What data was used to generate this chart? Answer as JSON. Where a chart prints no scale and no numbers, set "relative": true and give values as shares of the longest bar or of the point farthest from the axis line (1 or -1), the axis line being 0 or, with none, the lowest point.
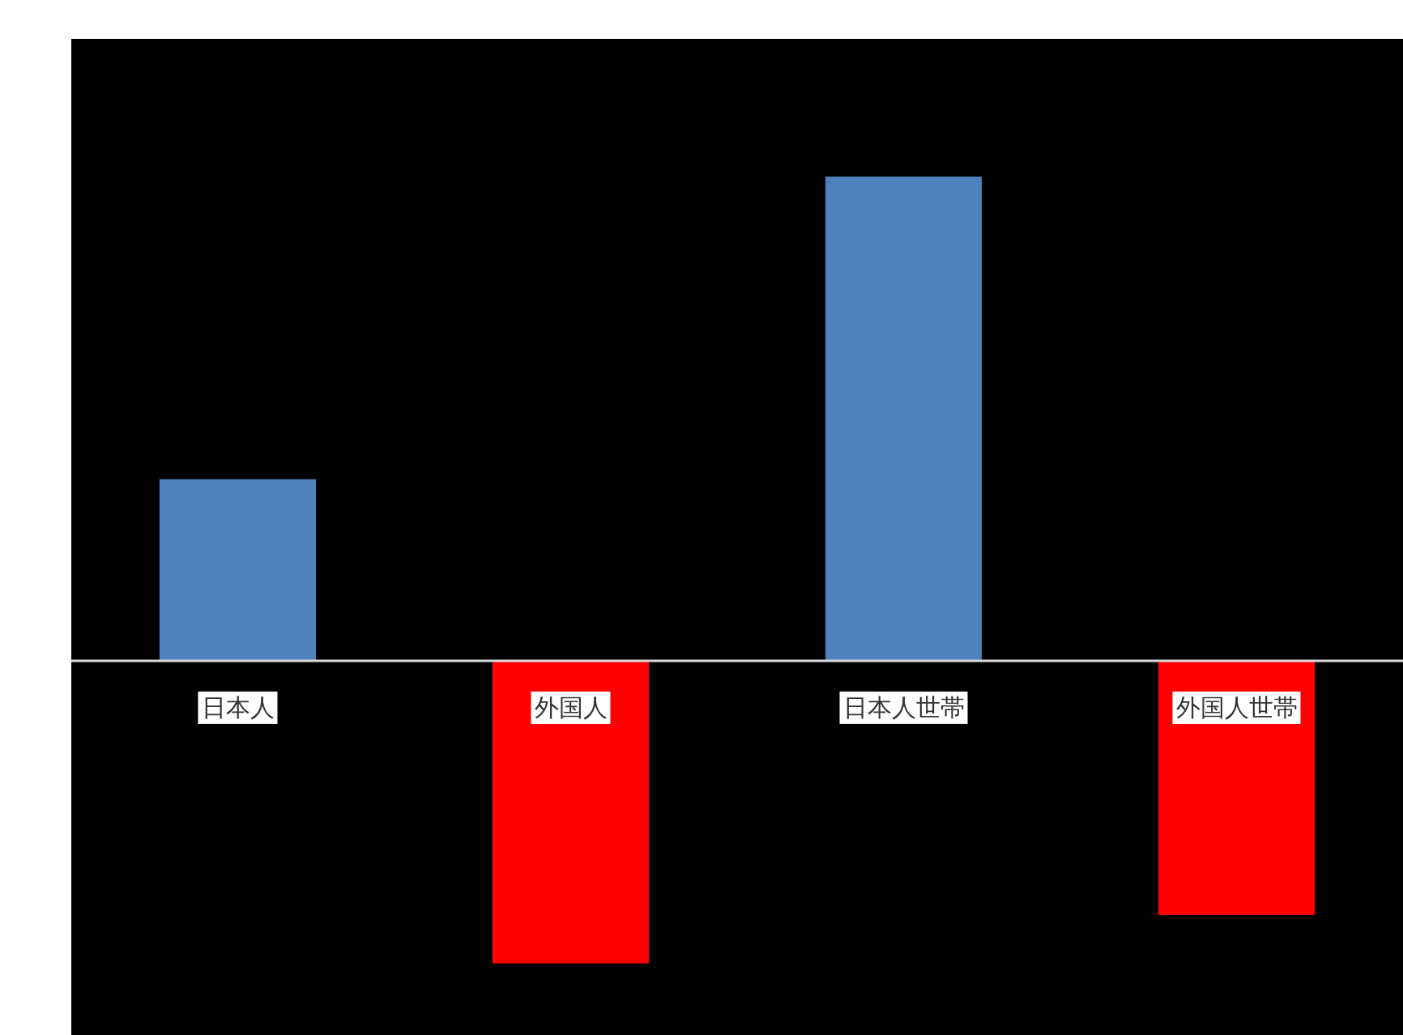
{
  "chart_data": {
    "type": "bar",
    "relative": true,
    "categories": [
      "日本人",
      "外国人",
      "日本人世帯",
      "外国人世帯"
    ],
    "values": [
      0.375,
      -0.625,
      1,
      -0.525
    ],
    "colors": [
      "#4f81bd",
      "#ff0000",
      "#4f81bd",
      "#ff0000"
    ]
  }
}
